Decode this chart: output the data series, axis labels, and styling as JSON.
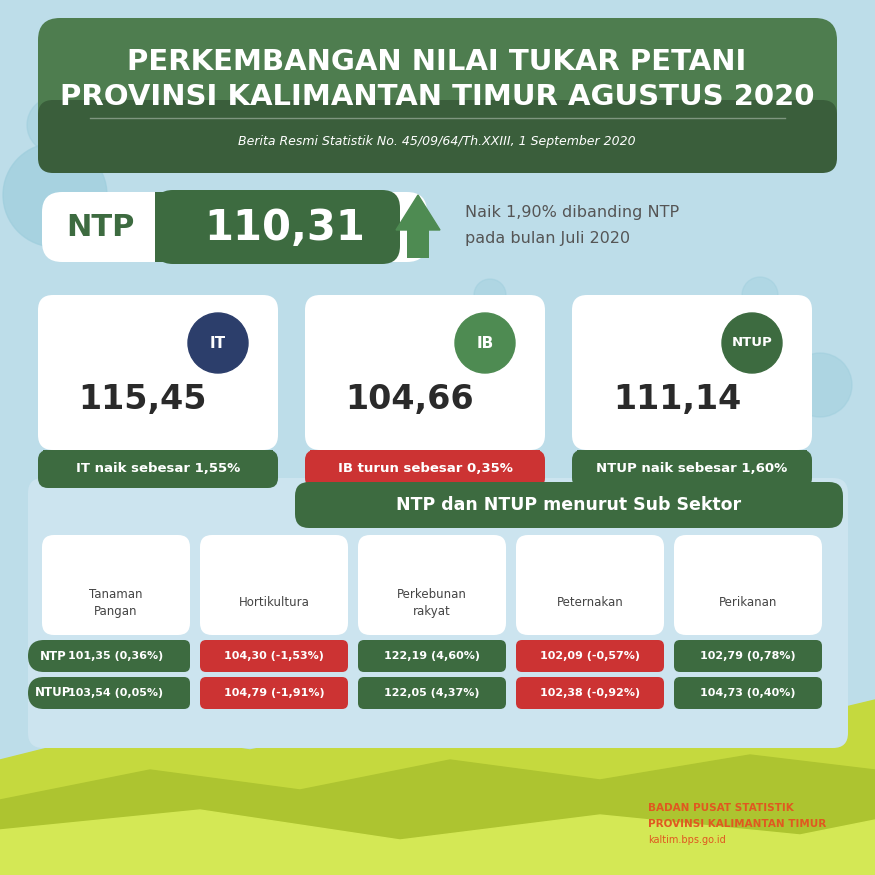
{
  "title_line1": "PERKEMBANGAN NILAI TUKAR PETANI",
  "title_line2": "PROVINSI KALIMANTAN TIMUR AGUSTUS 2020",
  "subtitle": "Berita Resmi Statistik No. 45/09/64/Th.XXIII, 1 September 2020",
  "bg_color": "#bddde9",
  "header_bg_top": "#4e7d4f",
  "header_bg_bot": "#3a5e3b",
  "ntp_value": "110,31",
  "ntp_desc1": "Naik 1,90% dibanding NTP",
  "ntp_desc2": "pada bulan Juli 2020",
  "it_value": "115,45",
  "it_label": "IT",
  "it_desc": "IT naik sebesar 1,55%",
  "ib_value": "104,66",
  "ib_label": "IB",
  "ib_desc": "IB turun sebesar 0,35%",
  "ntup_value": "111,14",
  "ntup_label": "NTUP",
  "ntup_desc": "NTUP naik sebesar 1,60%",
  "green_dark": "#3d6b40",
  "green_medium": "#4e8b52",
  "red_color": "#cc3333",
  "navy": "#2c3e6b",
  "sub_sector_title": "NTP dan NTUP menurut Sub Sektor",
  "sectors": [
    "Tanaman\nPangan",
    "Hortikultura",
    "Perkebunan\nrakyat",
    "Peternakan",
    "Perikanan"
  ],
  "ntp_values": [
    "101,35 (0,36%)",
    "104,30 (-1,53%)",
    "122,19 (4,60%)",
    "102,09 (-0,57%)",
    "102,79 (0,78%)"
  ],
  "ntup_values": [
    "103,54 (0,05%)",
    "104,79 (-1,91%)",
    "122,05 (4,37%)",
    "102,38 (-0,92%)",
    "104,73 (0,40%)"
  ],
  "ntp_colors": [
    "#3d6b40",
    "#cc3333",
    "#3d6b40",
    "#cc3333",
    "#3d6b40"
  ],
  "ntup_colors": [
    "#3d6b40",
    "#cc3333",
    "#3d6b40",
    "#cc3333",
    "#3d6b40"
  ],
  "circle_deco": [
    [
      55,
      195,
      52,
      "#9ecedd",
      0.7
    ],
    [
      55,
      125,
      28,
      "#9ecedd",
      0.5
    ],
    [
      820,
      385,
      32,
      "#9ecedd",
      0.5
    ],
    [
      760,
      295,
      18,
      "#9ecedd",
      0.4
    ],
    [
      490,
      295,
      16,
      "#9ecedd",
      0.45
    ]
  ],
  "hill_color1": "#c5d93e",
  "hill_color2": "#adc430",
  "hill_color3": "#d4e855",
  "bps_color": "#e05820",
  "bps_line1": "BADAN PUSAT STATISTIK",
  "bps_line2": "PROVINSI KALIMANTAN TIMUR",
  "bps_line3": "kaltim.bps.go.id"
}
